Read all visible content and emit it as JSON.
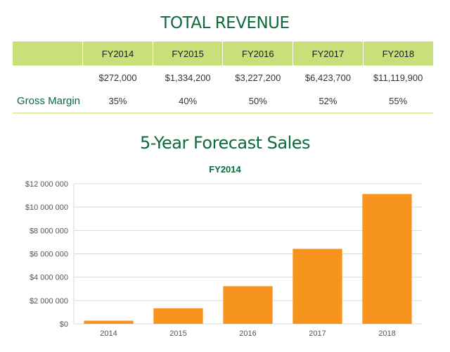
{
  "revenue_title": "TOTAL REVENUE",
  "table": {
    "headers": [
      "",
      "FY2014",
      "FY2015",
      "FY2016",
      "FY2017",
      "FY2018"
    ],
    "revenue_row": [
      "",
      "$272,000",
      "$1,334,200",
      "$3,227,200",
      "$6,423,700",
      "$11,119,900"
    ],
    "margin_row": [
      "Gross Margin",
      "35%",
      "40%",
      "50%",
      "52%",
      "55%"
    ]
  },
  "forecast_title": "5-Year Forecast Sales",
  "chart_data": {
    "type": "bar",
    "title": "FY2014",
    "categories": [
      "2014",
      "2015",
      "2016",
      "2017",
      "2018"
    ],
    "values": [
      272000,
      1334200,
      3227200,
      6423700,
      11119900
    ],
    "ylim": [
      0,
      12000000
    ],
    "yticks": [
      0,
      2000000,
      4000000,
      6000000,
      8000000,
      10000000,
      12000000
    ],
    "ytick_labels": [
      "$0",
      "$2 000 000",
      "$4 000 000",
      "$6 000 000",
      "$8 000 000",
      "$10 000 000",
      "$12 000 000"
    ],
    "grid": true,
    "xlabel": "",
    "ylabel": "",
    "colors": {
      "bar": "#f7941d",
      "grid": "#d9d9d9",
      "axis_text": "#555555"
    }
  },
  "colors": {
    "title_green": "#0b6b3a",
    "header_green": "#c9e07a"
  }
}
